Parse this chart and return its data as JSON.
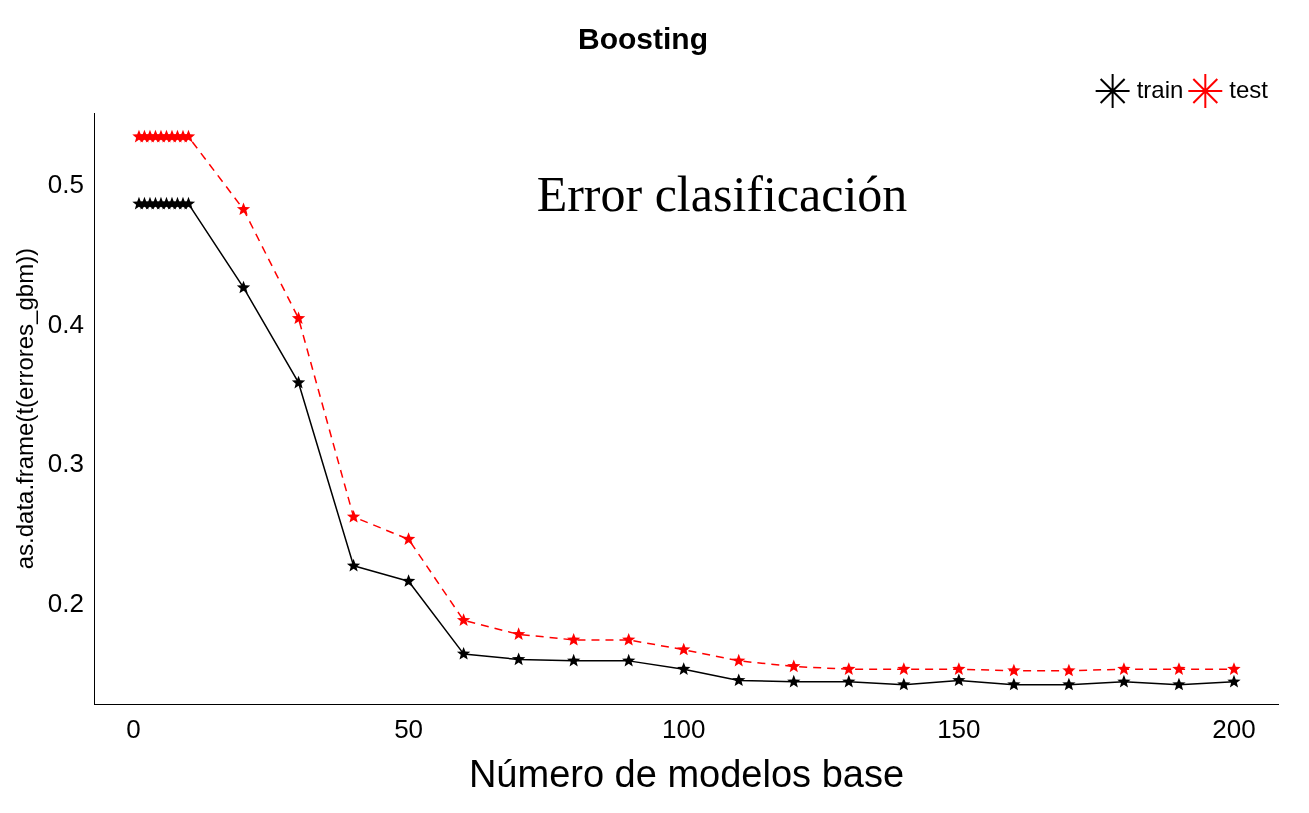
{
  "chart_data": {
    "type": "line",
    "title": "Boosting",
    "xlabel": "Número de modelos base",
    "ylabel": "as.data.frame(t(errores_gbm))",
    "annotations": [
      "Error clasificación"
    ],
    "x": [
      1,
      2,
      3,
      4,
      5,
      6,
      7,
      8,
      9,
      10,
      20,
      30,
      40,
      50,
      60,
      70,
      80,
      90,
      100,
      110,
      120,
      130,
      140,
      150,
      160,
      170,
      180,
      190,
      200
    ],
    "series": [
      {
        "name": "train",
        "color": "#000000",
        "line_style": "solid",
        "values": [
          0.487,
          0.487,
          0.487,
          0.487,
          0.487,
          0.487,
          0.487,
          0.487,
          0.487,
          0.487,
          0.427,
          0.359,
          0.228,
          0.217,
          0.165,
          0.161,
          0.16,
          0.16,
          0.154,
          0.146,
          0.145,
          0.145,
          0.143,
          0.146,
          0.143,
          0.143,
          0.145,
          0.143,
          0.145
        ]
      },
      {
        "name": "test",
        "color": "#ff0000",
        "line_style": "dashed",
        "values": [
          0.535,
          0.535,
          0.535,
          0.535,
          0.535,
          0.535,
          0.535,
          0.535,
          0.535,
          0.535,
          0.483,
          0.405,
          0.263,
          0.247,
          0.189,
          0.179,
          0.175,
          0.175,
          0.168,
          0.16,
          0.156,
          0.154,
          0.154,
          0.154,
          0.153,
          0.153,
          0.154,
          0.154,
          0.154
        ]
      }
    ],
    "xlim": [
      -7,
      208
    ],
    "xticks": [
      0,
      50,
      100,
      150,
      200
    ],
    "ylim": [
      0.129,
      0.552
    ],
    "yticks": [
      0.2,
      0.3,
      0.4,
      0.5
    ],
    "grid": false,
    "legend": "top right",
    "marker": "star"
  }
}
